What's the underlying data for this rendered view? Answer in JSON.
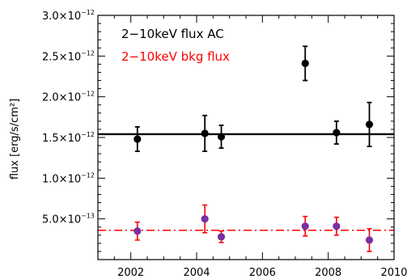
{
  "chart_data": {
    "type": "scatter",
    "title": "",
    "xlabel": "",
    "ylabel": "flux [erg/s/cm²]",
    "xlim": [
      2001,
      2010
    ],
    "ylim": [
      0,
      3e-12
    ],
    "x_ticks": [
      2002,
      2004,
      2006,
      2008,
      2010
    ],
    "x_tick_labels": [
      "2002",
      "2004",
      "2006",
      "2008",
      "2010"
    ],
    "y_ticks": [
      5e-13,
      1e-12,
      1.5e-12,
      2e-12,
      2.5e-12,
      3e-12
    ],
    "y_tick_labels": [
      {
        "mant": "5.0×10",
        "exp": "−13"
      },
      {
        "mant": "1.0×10",
        "exp": "−12"
      },
      {
        "mant": "1.5×10",
        "exp": "−12"
      },
      {
        "mant": "2.0×10",
        "exp": "−12"
      },
      {
        "mant": "2.5×10",
        "exp": "−12"
      },
      {
        "mant": "3.0×10",
        "exp": "−12"
      }
    ],
    "grid": false,
    "legend_placement": "top-left",
    "series": [
      {
        "name": "2−10keV flux AC",
        "color": "#000000",
        "marker_fill": "#000000",
        "x": [
          2002.2,
          2004.25,
          2004.75,
          2007.3,
          2008.25,
          2009.25
        ],
        "y": [
          1.48e-12,
          1.55e-12,
          1.51e-12,
          2.41e-12,
          1.56e-12,
          1.66e-12
        ],
        "y_err": [
          1.5e-13,
          2.2e-13,
          1.4e-13,
          2.1e-13,
          1.4e-13,
          2.7e-13
        ],
        "reference_line": {
          "value": 1.54e-12,
          "style": "solid"
        }
      },
      {
        "name": "2−10keV bkg flux",
        "color": "#ff0000",
        "marker_fill": "#7b2fa0",
        "x": [
          2002.2,
          2004.25,
          2004.75,
          2007.3,
          2008.25,
          2009.25
        ],
        "y": [
          3.5e-13,
          5e-13,
          2.8e-13,
          4.1e-13,
          4.1e-13,
          2.4e-13
        ],
        "y_err": [
          1.1e-13,
          1.7e-13,
          7e-14,
          1.2e-13,
          1.1e-13,
          1.4e-13
        ],
        "reference_line": {
          "value": 3.6e-13,
          "style": "dash-dot"
        }
      }
    ]
  }
}
